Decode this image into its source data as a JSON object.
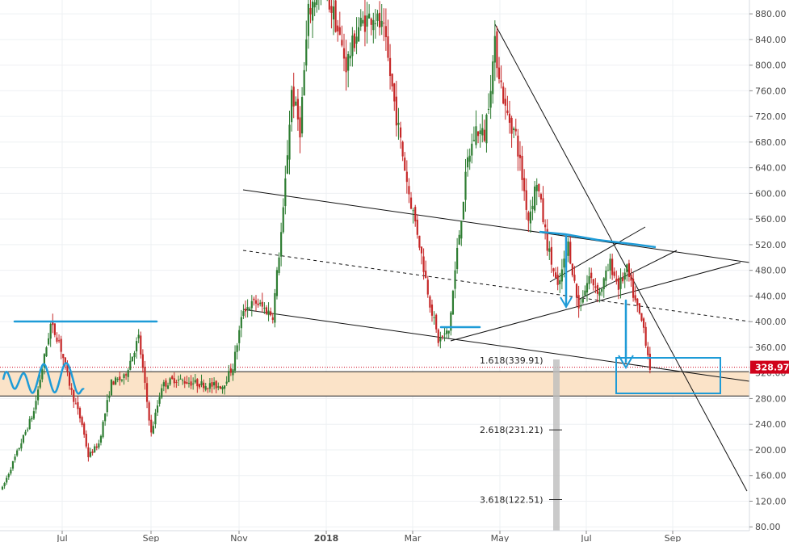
{
  "chart_data": {
    "type": "candlestick",
    "y_axis": {
      "ticks": [
        "80.00",
        "120.00",
        "160.00",
        "200.00",
        "240.00",
        "280.00",
        "320.00",
        "360.00",
        "400.00",
        "440.00",
        "480.00",
        "520.00",
        "560.00",
        "600.00",
        "640.00",
        "680.00",
        "720.00",
        "760.00",
        "800.00",
        "840.00",
        "880.00"
      ],
      "range": [
        74,
        894
      ]
    },
    "x_axis": {
      "ticks": [
        "Jul",
        "Sep",
        "Nov",
        "2018",
        "Mar",
        "May",
        "Jul",
        "Sep"
      ]
    },
    "last_price": {
      "value": 328.97,
      "label": "328.97",
      "color": "#d0021b"
    },
    "fib_levels": [
      {
        "label": "1.618(339.91)",
        "value": 339.91
      },
      {
        "label": "2.618(231.21)",
        "value": 231.21
      },
      {
        "label": "3.618(122.51)",
        "value": 122.51
      }
    ],
    "support_zone": {
      "low": 284,
      "high": 322,
      "color": "#fbe3c8"
    },
    "colors": {
      "up": "#2e7d32",
      "down": "#c62828",
      "drawing": "#1e9bd7",
      "trendline": "#000000"
    },
    "price_anchors": [
      {
        "t": 0,
        "p": 140
      },
      {
        "t": 15,
        "p": 260
      },
      {
        "t": 23,
        "p": 395
      },
      {
        "t": 27,
        "p": 370
      },
      {
        "t": 33,
        "p": 290
      },
      {
        "t": 38,
        "p": 240
      },
      {
        "t": 41,
        "p": 190
      },
      {
        "t": 46,
        "p": 210
      },
      {
        "t": 52,
        "p": 305
      },
      {
        "t": 58,
        "p": 312
      },
      {
        "t": 65,
        "p": 375
      },
      {
        "t": 68,
        "p": 300
      },
      {
        "t": 71,
        "p": 225
      },
      {
        "t": 76,
        "p": 300
      },
      {
        "t": 82,
        "p": 310
      },
      {
        "t": 90,
        "p": 305
      },
      {
        "t": 100,
        "p": 300
      },
      {
        "t": 105,
        "p": 300
      },
      {
        "t": 110,
        "p": 330
      },
      {
        "t": 115,
        "p": 420
      },
      {
        "t": 121,
        "p": 430
      },
      {
        "t": 129,
        "p": 410
      },
      {
        "t": 134,
        "p": 570
      },
      {
        "t": 138,
        "p": 760
      },
      {
        "t": 142,
        "p": 700
      },
      {
        "t": 146,
        "p": 880
      },
      {
        "t": 152,
        "p": 930
      },
      {
        "t": 158,
        "p": 880
      },
      {
        "t": 164,
        "p": 800
      },
      {
        "t": 170,
        "p": 860
      },
      {
        "t": 177,
        "p": 880
      },
      {
        "t": 182,
        "p": 850
      },
      {
        "t": 188,
        "p": 720
      },
      {
        "t": 194,
        "p": 600
      },
      {
        "t": 198,
        "p": 540
      },
      {
        "t": 204,
        "p": 430
      },
      {
        "t": 208,
        "p": 370
      },
      {
        "t": 213,
        "p": 385
      },
      {
        "t": 217,
        "p": 510
      },
      {
        "t": 222,
        "p": 650
      },
      {
        "t": 226,
        "p": 700
      },
      {
        "t": 230,
        "p": 690
      },
      {
        "t": 235,
        "p": 830
      },
      {
        "t": 240,
        "p": 730
      },
      {
        "t": 245,
        "p": 690
      },
      {
        "t": 251,
        "p": 560
      },
      {
        "t": 255,
        "p": 620
      },
      {
        "t": 260,
        "p": 520
      },
      {
        "t": 265,
        "p": 450
      },
      {
        "t": 270,
        "p": 520
      },
      {
        "t": 275,
        "p": 420
      },
      {
        "t": 280,
        "p": 470
      },
      {
        "t": 285,
        "p": 445
      },
      {
        "t": 290,
        "p": 490
      },
      {
        "t": 294,
        "p": 455
      },
      {
        "t": 298,
        "p": 480
      },
      {
        "t": 302,
        "p": 430
      },
      {
        "t": 306,
        "p": 390
      },
      {
        "t": 309,
        "p": 329
      }
    ]
  }
}
